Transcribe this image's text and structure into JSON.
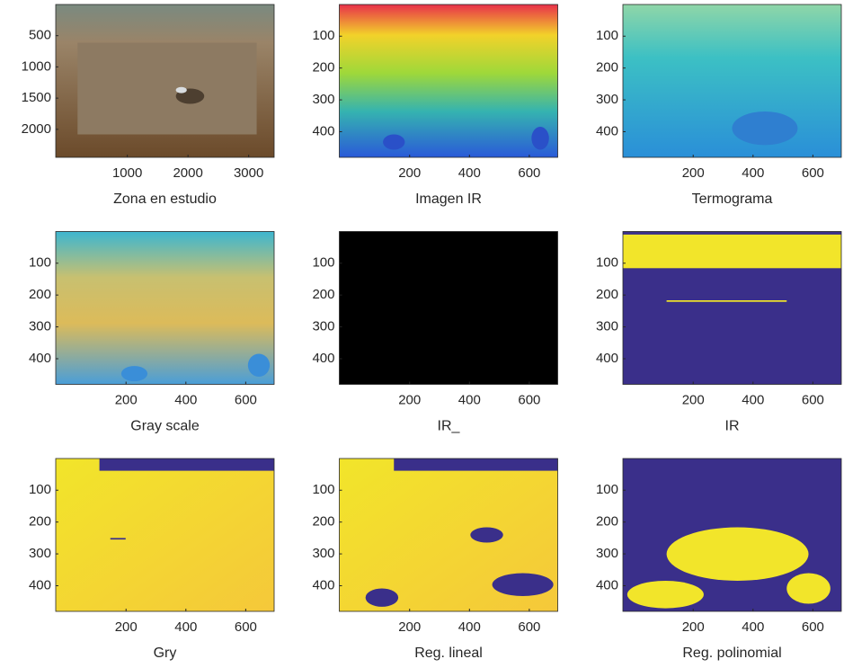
{
  "chart_data": [
    {
      "type": "image",
      "xlabel": "Zona en estudio",
      "xlim": [
        -180,
        3420
      ],
      "ylim": [
        0.5,
        2448.5
      ],
      "xticks": [
        1000,
        2000,
        3000
      ],
      "yticks": [
        500,
        1000,
        1500,
        2000
      ]
    },
    {
      "type": "image",
      "xlabel": "Imagen IR",
      "xlim": [
        -35,
        695
      ],
      "ylim": [
        0.5,
        480.5
      ],
      "xticks": [
        200,
        400,
        600
      ],
      "yticks": [
        100,
        200,
        300,
        400
      ]
    },
    {
      "type": "image",
      "xlabel": "Termograma",
      "xlim": [
        -35,
        695
      ],
      "ylim": [
        0.5,
        480.5
      ],
      "xticks": [
        200,
        400,
        600
      ],
      "yticks": [
        100,
        200,
        300,
        400
      ]
    },
    {
      "type": "image",
      "xlabel": "Gray scale",
      "xlim": [
        -35,
        695
      ],
      "ylim": [
        0.5,
        480.5
      ],
      "xticks": [
        200,
        400,
        600
      ],
      "yticks": [
        100,
        200,
        300,
        400
      ]
    },
    {
      "type": "image",
      "xlabel": "IR_",
      "xlim": [
        -35,
        695
      ],
      "ylim": [
        0.5,
        480.5
      ],
      "xticks": [
        200,
        400,
        600
      ],
      "yticks": [
        100,
        200,
        300,
        400
      ]
    },
    {
      "type": "image",
      "xlabel": "IR",
      "xlim": [
        -35,
        695
      ],
      "ylim": [
        0.5,
        480.5
      ],
      "xticks": [
        200,
        400,
        600
      ],
      "yticks": [
        100,
        200,
        300,
        400
      ]
    },
    {
      "type": "image",
      "xlabel": "Gry",
      "xlim": [
        -35,
        695
      ],
      "ylim": [
        0.5,
        480.5
      ],
      "xticks": [
        200,
        400,
        600
      ],
      "yticks": [
        100,
        200,
        300,
        400
      ]
    },
    {
      "type": "image",
      "xlabel": "Reg. lineal",
      "xlim": [
        -35,
        695
      ],
      "ylim": [
        0.5,
        480.5
      ],
      "xticks": [
        200,
        400,
        600
      ],
      "yticks": [
        100,
        200,
        300,
        400
      ]
    },
    {
      "type": "image",
      "xlabel": "Reg. polinomial",
      "xlim": [
        -35,
        695
      ],
      "ylim": [
        0.5,
        480.5
      ],
      "xticks": [
        200,
        400,
        600
      ],
      "yticks": [
        100,
        200,
        300,
        400
      ]
    }
  ]
}
